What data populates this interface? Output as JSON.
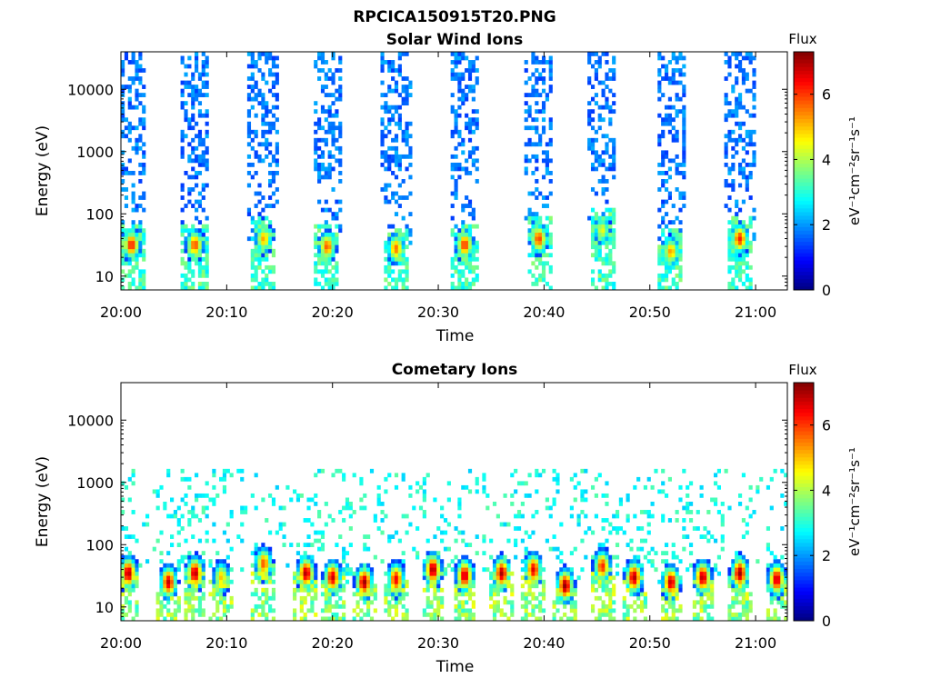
{
  "figure": {
    "title": "RPCICA150915T20.PNG"
  },
  "chart_data": [
    {
      "type": "heatmap",
      "title": "Solar Wind Ions",
      "xlabel": "Time",
      "ylabel": "Energy (eV)",
      "x_ticks": [
        "20:00",
        "20:10",
        "20:20",
        "20:30",
        "20:40",
        "20:50",
        "21:00"
      ],
      "xlim": [
        "20:00",
        "21:03"
      ],
      "y_scale": "log",
      "y_ticks": [
        10,
        100,
        1000,
        10000
      ],
      "y_tick_labels": [
        "10",
        "100",
        "1000",
        "10000"
      ],
      "ylim": [
        6,
        40000
      ],
      "colorbar": {
        "title": "Flux",
        "label": "eV⁻¹cm⁻²sr⁻¹s⁻¹",
        "ticks": [
          0,
          2,
          4,
          6
        ],
        "range": [
          0,
          7.3
        ],
        "colormap": "jet"
      },
      "bursts": [
        {
          "time": "20:01",
          "peak_energy_eV": 32,
          "peak_flux": 6.3
        },
        {
          "time": "20:07",
          "peak_energy_eV": 32,
          "peak_flux": 5.9
        },
        {
          "time": "20:13.5",
          "peak_energy_eV": 40,
          "peak_flux": 5.2
        },
        {
          "time": "20:19.5",
          "peak_energy_eV": 30,
          "peak_flux": 5.8
        },
        {
          "time": "20:26",
          "peak_energy_eV": 28,
          "peak_flux": 5.6
        },
        {
          "time": "20:32.5",
          "peak_energy_eV": 32,
          "peak_flux": 6.1
        },
        {
          "time": "20:39.5",
          "peak_energy_eV": 40,
          "peak_flux": 6.0
        },
        {
          "time": "20:45.5",
          "peak_energy_eV": 55,
          "peak_flux": 4.5
        },
        {
          "time": "20:52",
          "peak_energy_eV": 25,
          "peak_flux": 5.3
        },
        {
          "time": "20:58.5",
          "peak_energy_eV": 40,
          "peak_flux": 6.2
        }
      ],
      "grid": false
    },
    {
      "type": "heatmap",
      "title": "Cometary Ions",
      "xlabel": "Time",
      "ylabel": "Energy (eV)",
      "x_ticks": [
        "20:00",
        "20:10",
        "20:20",
        "20:30",
        "20:40",
        "20:50",
        "21:00"
      ],
      "xlim": [
        "20:00",
        "21:03"
      ],
      "y_scale": "log",
      "y_ticks": [
        10,
        100,
        1000,
        10000
      ],
      "y_tick_labels": [
        "10",
        "100",
        "1000",
        "10000"
      ],
      "ylim": [
        6,
        40000
      ],
      "colorbar": {
        "title": "Flux",
        "label": "eV⁻¹cm⁻²sr⁻¹s⁻¹",
        "ticks": [
          0,
          2,
          4,
          6
        ],
        "range": [
          0,
          7.3
        ],
        "colormap": "jet"
      },
      "bursts": [
        {
          "time": "20:00.7",
          "peak_energy_eV": 35,
          "peak_flux": 7.0
        },
        {
          "time": "20:04.5",
          "peak_energy_eV": 25,
          "peak_flux": 6.8
        },
        {
          "time": "20:07",
          "peak_energy_eV": 35,
          "peak_flux": 7.0
        },
        {
          "time": "20:09.5",
          "peak_energy_eV": 30,
          "peak_flux": 5.0
        },
        {
          "time": "20:13.5",
          "peak_energy_eV": 50,
          "peak_flux": 5.8
        },
        {
          "time": "20:17.5",
          "peak_energy_eV": 35,
          "peak_flux": 7.0
        },
        {
          "time": "20:20",
          "peak_energy_eV": 30,
          "peak_flux": 6.8
        },
        {
          "time": "20:23",
          "peak_energy_eV": 25,
          "peak_flux": 7.1
        },
        {
          "time": "20:26",
          "peak_energy_eV": 28,
          "peak_flux": 6.5
        },
        {
          "time": "20:29.5",
          "peak_energy_eV": 40,
          "peak_flux": 7.1
        },
        {
          "time": "20:32.5",
          "peak_energy_eV": 32,
          "peak_flux": 6.9
        },
        {
          "time": "20:36",
          "peak_energy_eV": 35,
          "peak_flux": 7.0
        },
        {
          "time": "20:39",
          "peak_energy_eV": 40,
          "peak_flux": 6.6
        },
        {
          "time": "20:42",
          "peak_energy_eV": 22,
          "peak_flux": 7.2
        },
        {
          "time": "20:45.5",
          "peak_energy_eV": 45,
          "peak_flux": 6.2
        },
        {
          "time": "20:48.5",
          "peak_energy_eV": 30,
          "peak_flux": 7.0
        },
        {
          "time": "20:52",
          "peak_energy_eV": 25,
          "peak_flux": 6.9
        },
        {
          "time": "20:55",
          "peak_energy_eV": 30,
          "peak_flux": 7.0
        },
        {
          "time": "20:58.5",
          "peak_energy_eV": 35,
          "peak_flux": 7.1
        },
        {
          "time": "21:02",
          "peak_energy_eV": 28,
          "peak_flux": 6.9
        }
      ],
      "grid": false
    }
  ]
}
